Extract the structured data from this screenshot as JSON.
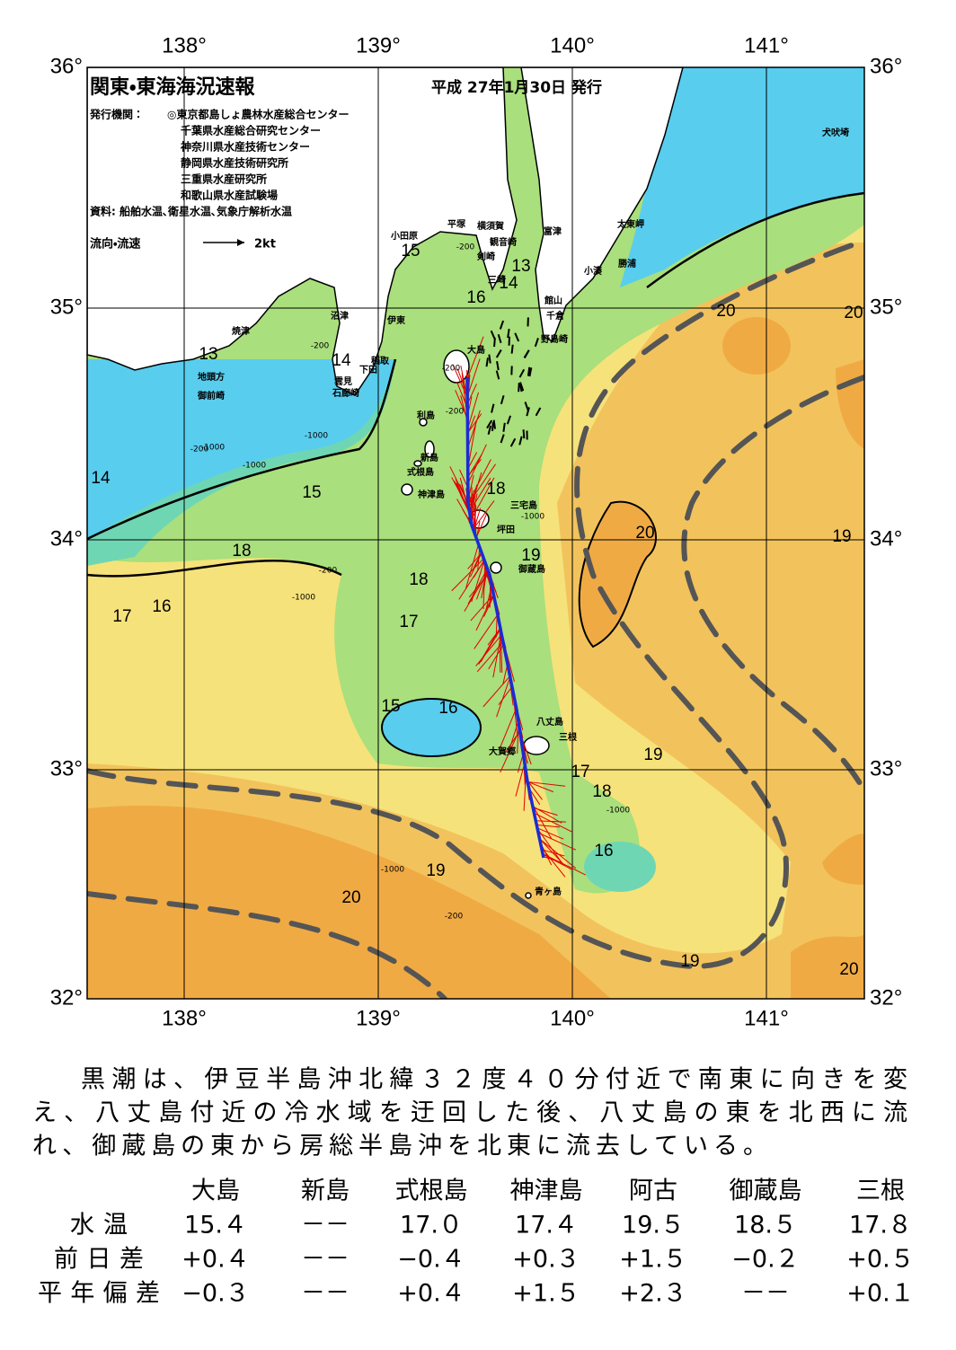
{
  "header": {
    "title": "関東・東海海況速報",
    "date": "平成 27年1月30日 発行",
    "publisher_label": "発行機関：",
    "publishers": [
      "◎東京都島しょ農林水産総合センター",
      "千葉県水産総合研究センター",
      "神奈川県水産技術センター",
      "静岡県水産技術研究所",
      "三重県水産研究所",
      "和歌山県水産試験場"
    ],
    "source": "資料: 船舶水温､衛星水温､気象庁解析水温",
    "legend_label": "流向・流速",
    "legend_speed": "2kt"
  },
  "axes": {
    "longitudes": [
      "138°",
      "139°",
      "140°",
      "141°"
    ],
    "latitudes": [
      "36°",
      "35°",
      "34°",
      "33°",
      "32°"
    ]
  },
  "places": [
    "犬吠埼",
    "太東岬",
    "勝浦",
    "小湊",
    "富津",
    "館山",
    "千倉",
    "野島崎",
    "横須賀",
    "観音崎",
    "剣崎",
    "三崎",
    "平塚",
    "小田原",
    "沼津",
    "伊東",
    "焼津",
    "稲取",
    "下田",
    "雲見",
    "石廊崎",
    "地頭方",
    "御前崎",
    "大島",
    "利島",
    "新島",
    "式根島",
    "神津島",
    "三宅島",
    "坪田",
    "御蔵島",
    "八丈島",
    "三根",
    "大賀郷",
    "青ヶ島"
  ],
  "isotherms": [
    13,
    14,
    15,
    16,
    13,
    14,
    20,
    20,
    14,
    15,
    18,
    20,
    19,
    18,
    19,
    18,
    17,
    16,
    17,
    15,
    16,
    19,
    17,
    18,
    16,
    19,
    20,
    19,
    20
  ],
  "depths": [
    -200,
    -200,
    -1000,
    -200,
    -1000,
    -200,
    -200,
    -1000,
    -1000,
    -200,
    -1000,
    -1000,
    -1000,
    -200
  ],
  "summary": [
    "黒潮は、伊豆半島沖北緯３２度４０分付近で南東に向きを変",
    "え、八丈島付近の冷水域を迂回した後、八丈島の東を北西に流",
    "れ、御蔵島の東から房総半島沖を北東に流去している。"
  ],
  "table": {
    "columns": [
      "大島",
      "新島",
      "式根島",
      "神津島",
      "阿古",
      "御蔵島",
      "三根"
    ],
    "rows": [
      [
        "水温",
        "15.４",
        "－－",
        "17.０",
        "17.４",
        "19.５",
        "18.５",
        "17.８"
      ],
      [
        "前日差",
        "+0.４",
        "－－",
        "−0.４",
        "+0.３",
        "+1.５",
        "−0.２",
        "+0.５"
      ],
      [
        "平年偏差",
        "−0.３",
        "－－",
        "+0.４",
        "+1.５",
        "+2.３",
        "－－",
        "+0.１"
      ]
    ]
  }
}
